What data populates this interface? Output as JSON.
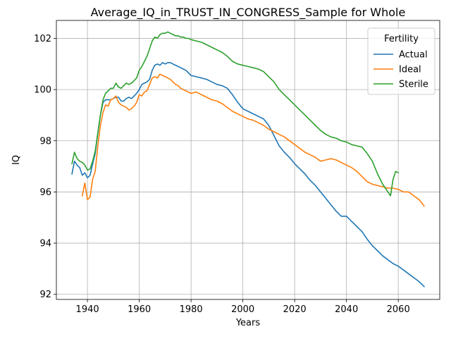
{
  "chart_data": {
    "type": "line",
    "title": "Average_IQ_in_TRUST_IN_CONGRESS_Sample for Whole",
    "xlabel": "Years",
    "ylabel": "IQ",
    "xlim": [
      1928,
      2076
    ],
    "ylim": [
      91.8,
      102.7
    ],
    "xticks": [
      1940,
      1960,
      1980,
      2000,
      2020,
      2040,
      2060
    ],
    "yticks": [
      92,
      94,
      96,
      98,
      100,
      102
    ],
    "grid": true,
    "legend": {
      "title": "Fertility",
      "placement": "top-right"
    },
    "series": [
      {
        "name": "Actual",
        "color": "#1f77b4",
        "x": [
          1934,
          1935,
          1936,
          1937,
          1938,
          1939,
          1940,
          1941,
          1942,
          1943,
          1944,
          1945,
          1946,
          1947,
          1948,
          1949,
          1950,
          1951,
          1952,
          1953,
          1954,
          1955,
          1956,
          1957,
          1958,
          1959,
          1960,
          1961,
          1962,
          1963,
          1964,
          1965,
          1966,
          1967,
          1968,
          1969,
          1970,
          1971,
          1972,
          1973,
          1974,
          1975,
          1976,
          1977,
          1978,
          1979,
          1980,
          1982,
          1984,
          1986,
          1988,
          1990,
          1992,
          1994,
          1996,
          1998,
          2000,
          2002,
          2004,
          2006,
          2008,
          2010,
          2012,
          2014,
          2016,
          2018,
          2020,
          2022,
          2024,
          2026,
          2028,
          2030,
          2032,
          2034,
          2036,
          2038,
          2040,
          2042,
          2044,
          2046,
          2048,
          2050,
          2052,
          2054,
          2056,
          2058,
          2060,
          2062,
          2064,
          2066,
          2068,
          2070
        ],
        "y": [
          96.7,
          97.2,
          97.05,
          96.95,
          96.65,
          96.75,
          96.55,
          96.65,
          97.1,
          97.5,
          98.3,
          99.0,
          99.5,
          99.6,
          99.6,
          99.6,
          99.65,
          99.7,
          99.7,
          99.55,
          99.55,
          99.65,
          99.7,
          99.65,
          99.75,
          99.85,
          100.0,
          100.2,
          100.25,
          100.3,
          100.4,
          100.75,
          100.95,
          101.0,
          100.95,
          101.05,
          101.0,
          101.05,
          101.05,
          101.0,
          100.95,
          100.9,
          100.85,
          100.8,
          100.75,
          100.65,
          100.55,
          100.5,
          100.45,
          100.4,
          100.3,
          100.2,
          100.15,
          100.05,
          99.8,
          99.5,
          99.25,
          99.15,
          99.05,
          98.95,
          98.85,
          98.6,
          98.2,
          97.8,
          97.55,
          97.35,
          97.1,
          96.9,
          96.7,
          96.45,
          96.25,
          96.0,
          95.75,
          95.5,
          95.25,
          95.05,
          95.05,
          94.85,
          94.65,
          94.45,
          94.15,
          93.9,
          93.7,
          93.5,
          93.35,
          93.2,
          93.1,
          92.95,
          92.8,
          92.65,
          92.5,
          92.3
        ]
      },
      {
        "name": "Ideal",
        "color": "#ff7f0e",
        "x": [
          1938,
          1939,
          1940,
          1941,
          1942,
          1943,
          1944,
          1945,
          1946,
          1947,
          1948,
          1949,
          1950,
          1951,
          1952,
          1953,
          1954,
          1955,
          1956,
          1957,
          1958,
          1959,
          1960,
          1961,
          1962,
          1963,
          1964,
          1965,
          1966,
          1967,
          1968,
          1969,
          1970,
          1971,
          1972,
          1973,
          1974,
          1975,
          1976,
          1977,
          1978,
          1980,
          1982,
          1984,
          1986,
          1988,
          1990,
          1992,
          1994,
          1996,
          1998,
          2000,
          2002,
          2004,
          2006,
          2008,
          2010,
          2012,
          2014,
          2016,
          2018,
          2020,
          2022,
          2024,
          2026,
          2028,
          2030,
          2032,
          2034,
          2036,
          2038,
          2040,
          2042,
          2044,
          2046,
          2048,
          2050,
          2052,
          2054,
          2056,
          2058,
          2060,
          2062,
          2064,
          2066,
          2068,
          2070
        ],
        "y": [
          95.85,
          96.35,
          95.7,
          95.8,
          96.5,
          96.8,
          97.8,
          98.6,
          99.1,
          99.4,
          99.35,
          99.6,
          99.65,
          99.75,
          99.5,
          99.4,
          99.35,
          99.3,
          99.2,
          99.25,
          99.35,
          99.5,
          99.8,
          99.75,
          99.9,
          99.95,
          100.2,
          100.45,
          100.5,
          100.45,
          100.6,
          100.55,
          100.5,
          100.45,
          100.4,
          100.3,
          100.2,
          100.15,
          100.05,
          100.0,
          99.95,
          99.85,
          99.9,
          99.8,
          99.7,
          99.6,
          99.55,
          99.45,
          99.3,
          99.15,
          99.05,
          98.95,
          98.85,
          98.8,
          98.7,
          98.6,
          98.45,
          98.35,
          98.25,
          98.15,
          98.0,
          97.85,
          97.7,
          97.55,
          97.45,
          97.35,
          97.2,
          97.25,
          97.3,
          97.25,
          97.15,
          97.05,
          96.95,
          96.8,
          96.6,
          96.4,
          96.3,
          96.25,
          96.2,
          96.15,
          96.15,
          96.1,
          96.0,
          96.0,
          95.85,
          95.7,
          95.45
        ]
      },
      {
        "name": "Sterile",
        "color": "#2ca02c",
        "x": [
          1934,
          1935,
          1936,
          1937,
          1938,
          1939,
          1940,
          1941,
          1942,
          1943,
          1944,
          1945,
          1946,
          1947,
          1948,
          1949,
          1950,
          1951,
          1952,
          1953,
          1954,
          1955,
          1956,
          1957,
          1958,
          1959,
          1960,
          1961,
          1962,
          1963,
          1964,
          1965,
          1966,
          1967,
          1968,
          1969,
          1970,
          1971,
          1972,
          1973,
          1974,
          1975,
          1976,
          1977,
          1978,
          1979,
          1980,
          1982,
          1984,
          1986,
          1988,
          1990,
          1992,
          1994,
          1996,
          1998,
          2000,
          2002,
          2004,
          2006,
          2008,
          2010,
          2012,
          2014,
          2016,
          2018,
          2020,
          2022,
          2024,
          2026,
          2028,
          2030,
          2032,
          2034,
          2036,
          2038,
          2040,
          2042,
          2044,
          2046,
          2048,
          2050,
          2052,
          2054,
          2056,
          2057,
          2058,
          2059,
          2060
        ],
        "y": [
          97.1,
          97.55,
          97.3,
          97.2,
          97.15,
          97.05,
          96.85,
          96.9,
          97.2,
          97.6,
          98.3,
          99.0,
          99.6,
          99.85,
          99.95,
          100.05,
          100.05,
          100.25,
          100.1,
          100.05,
          100.15,
          100.25,
          100.2,
          100.25,
          100.35,
          100.45,
          100.75,
          100.9,
          101.1,
          101.3,
          101.6,
          101.9,
          102.05,
          102.0,
          102.15,
          102.2,
          102.2,
          102.25,
          102.2,
          102.15,
          102.1,
          102.1,
          102.05,
          102.05,
          102.0,
          102.0,
          101.95,
          101.9,
          101.85,
          101.75,
          101.65,
          101.55,
          101.45,
          101.3,
          101.1,
          101.0,
          100.95,
          100.9,
          100.85,
          100.8,
          100.7,
          100.5,
          100.3,
          100.0,
          99.8,
          99.6,
          99.4,
          99.2,
          99.0,
          98.8,
          98.6,
          98.4,
          98.25,
          98.15,
          98.1,
          98.0,
          97.95,
          97.85,
          97.8,
          97.75,
          97.5,
          97.2,
          96.7,
          96.3,
          96.0,
          95.85,
          96.5,
          96.8,
          96.75
        ]
      }
    ]
  }
}
